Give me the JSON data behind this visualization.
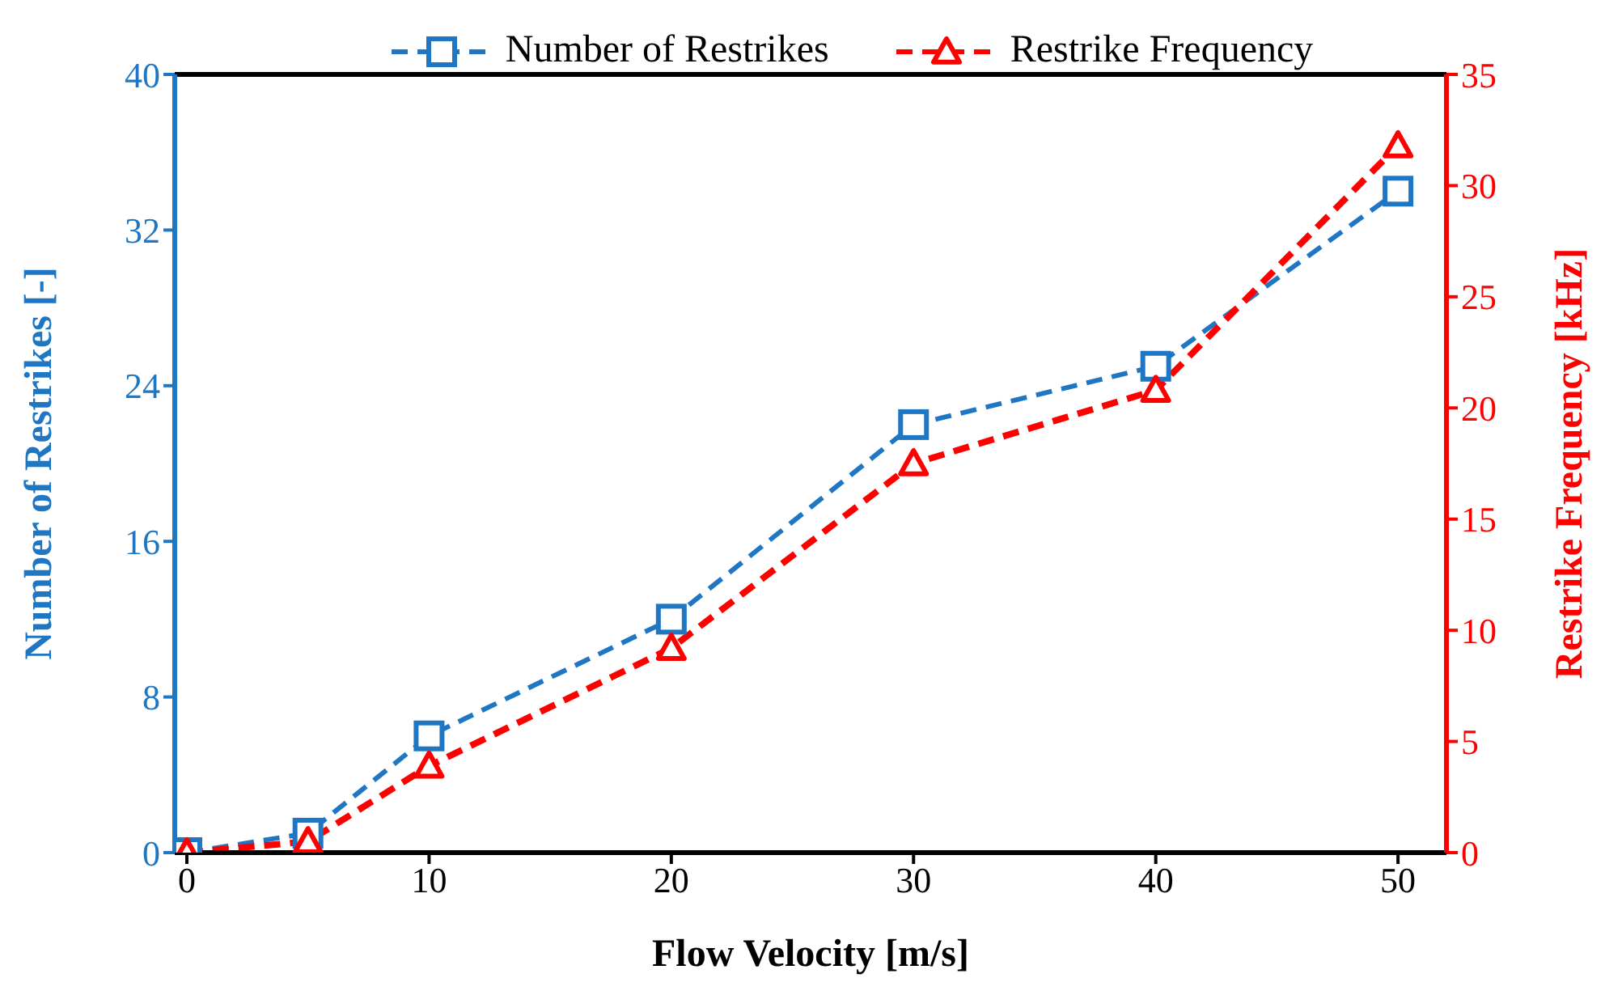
{
  "chart_data": {
    "type": "line",
    "xlabel": "Flow Velocity [m/s]",
    "ylabel": "Number of Restrikes [-]",
    "y2label": "Restrike Frequency [kHz]",
    "x": [
      0,
      5,
      10,
      20,
      30,
      40,
      50
    ],
    "series": [
      {
        "name": "Number of Restrikes",
        "color": "#1f77c4",
        "values": [
          0,
          1,
          6,
          12,
          22,
          25,
          34
        ],
        "marker": "square",
        "line_style": "dashed"
      },
      {
        "name": "Restrike Frequency",
        "color": "#ff0000",
        "values": [
          0,
          0.5,
          3.9,
          9.2,
          17.5,
          20.8,
          31.8
        ],
        "marker": "triangle",
        "line_style": "dashed",
        "axis": "y2"
      }
    ],
    "xlim": [
      -0.5,
      52
    ],
    "xticks": [
      0,
      10,
      20,
      30,
      40,
      50
    ],
    "ylim": [
      0,
      40
    ],
    "yticks": [
      0,
      8,
      16,
      24,
      32,
      40
    ],
    "y2lim": [
      0,
      35
    ],
    "y2ticks": [
      0,
      5,
      10,
      15,
      20,
      25,
      30,
      35
    ],
    "legend": "top",
    "grid": false
  }
}
